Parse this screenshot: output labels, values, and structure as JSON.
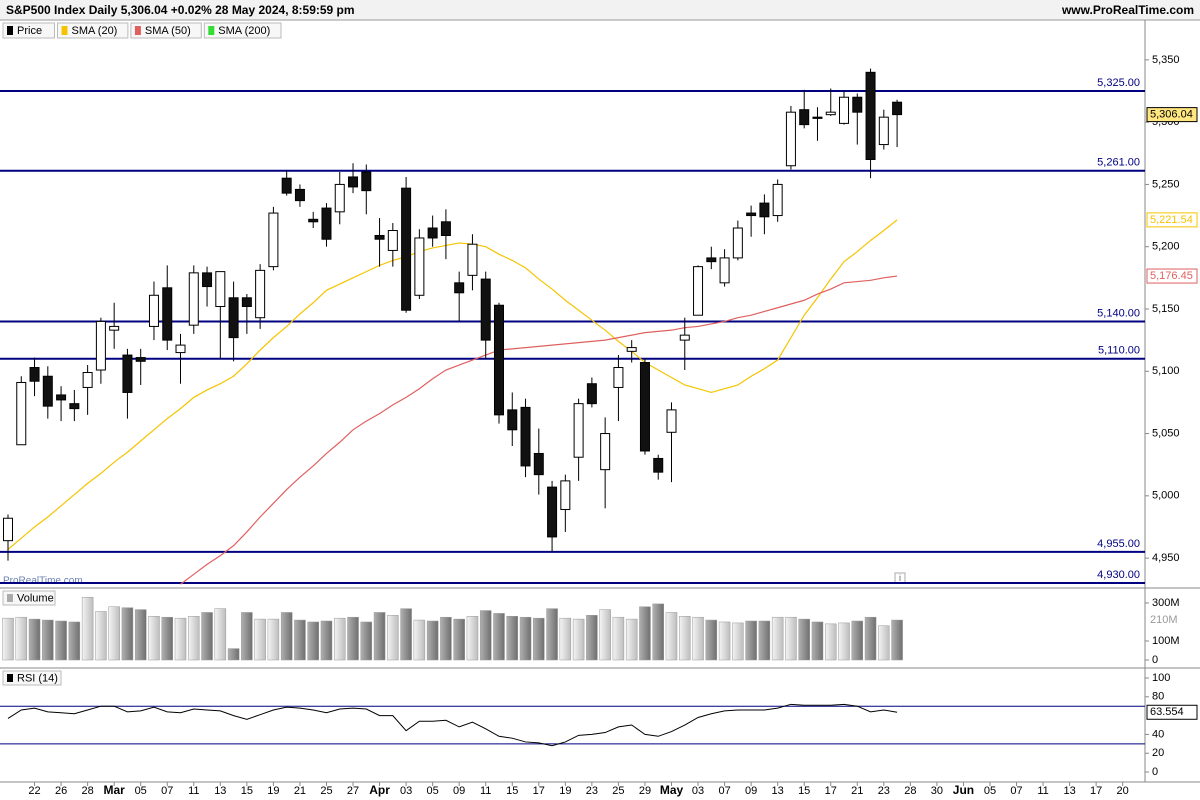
{
  "x_axis": {
    "categories": [
      null,
      null,
      "22",
      null,
      "26",
      null,
      "28",
      null,
      "Mar",
      null,
      "05",
      null,
      "07",
      null,
      "11",
      null,
      "13",
      null,
      "15",
      null,
      "19",
      null,
      "21",
      null,
      "25",
      null,
      "27",
      null,
      "Apr",
      null,
      "03",
      null,
      "05",
      null,
      "09",
      null,
      "11",
      null,
      "15",
      null,
      "17",
      null,
      "19",
      null,
      "23",
      null,
      "25",
      null,
      "29",
      null,
      "May",
      null,
      "03",
      null,
      "07",
      null,
      "09",
      null,
      "13",
      null,
      "15",
      null,
      "17",
      null,
      "21",
      null,
      "23",
      null,
      "28",
      null,
      "30",
      null,
      "Jun",
      null,
      "05",
      null,
      "07",
      null,
      "11",
      null,
      "13",
      null,
      "17",
      null,
      "20",
      null
    ]
  },
  "chart_data": [
    {
      "type": "candlestick",
      "title": "S&P500 Index Daily 5,306.04 +0.02% 28 May 2024, 8:59:59 pm",
      "source": "www.ProRealTime.com",
      "watermark": "ProRealTime.com",
      "price_name": "Price",
      "open": [
        4964,
        5041,
        5103,
        5096,
        5081,
        5074,
        5087,
        5101,
        5133,
        5113,
        5111,
        5136,
        5167,
        5115,
        5137,
        5179,
        5152,
        5159,
        5159,
        5143,
        5184,
        5255,
        5246,
        5222,
        5231,
        5228,
        5256,
        5260,
        5209,
        5197,
        5247,
        5161,
        5215,
        5220,
        5171,
        5177,
        5174,
        5153,
        5069,
        5071,
        5034,
        5007,
        4989,
        5031,
        5090,
        5021,
        5087,
        5116,
        5107,
        5030,
        5051,
        5125,
        5145,
        5191,
        5171,
        5191,
        5227,
        5235,
        5225,
        5265,
        5310,
        5304,
        5306,
        5299,
        5320,
        5340,
        5282,
        5316
      ],
      "high": [
        4985,
        5096,
        5111,
        5104,
        5088,
        5085,
        5105,
        5143,
        5155,
        5118,
        5118,
        5172,
        5185,
        5130,
        5185,
        5184,
        5180,
        5172,
        5162,
        5186,
        5232,
        5261,
        5250,
        5228,
        5235,
        5260,
        5267,
        5266,
        5223,
        5219,
        5256,
        5214,
        5225,
        5230,
        5180,
        5210,
        5180,
        5155,
        5083,
        5078,
        5054,
        5012,
        5017,
        5078,
        5095,
        5063,
        5113,
        5125,
        5110,
        5033,
        5075,
        5143,
        5185,
        5200,
        5198,
        5221,
        5233,
        5242,
        5254,
        5313,
        5326,
        5312,
        5327,
        5325,
        5323,
        5343,
        5310,
        5318
      ],
      "low": [
        4948,
        5041,
        5080,
        5062,
        5060,
        5060,
        5065,
        5090,
        5118,
        5062,
        5089,
        5125,
        5117,
        5090,
        5130,
        5152,
        5110,
        5108,
        5130,
        5134,
        5181,
        5241,
        5232,
        5215,
        5200,
        5218,
        5243,
        5226,
        5184,
        5184,
        5147,
        5158,
        5200,
        5190,
        5140,
        5165,
        5110,
        5058,
        5040,
        5015,
        5001,
        4955,
        4971,
        5012,
        5071,
        4990,
        5060,
        5107,
        5033,
        5013,
        5011,
        5101,
        5145,
        5182,
        5168,
        5189,
        5208,
        5210,
        5220,
        5262,
        5295,
        5285,
        5305,
        5298,
        5282,
        5255,
        5278,
        5280
      ],
      "close": [
        4982,
        5091,
        5092,
        5072,
        5077,
        5070,
        5099,
        5140,
        5136,
        5083,
        5108,
        5161,
        5125,
        5121,
        5179,
        5168,
        5180,
        5127,
        5152,
        5181,
        5227,
        5243,
        5237,
        5220,
        5206,
        5250,
        5248,
        5245,
        5206,
        5213,
        5149,
        5207,
        5207,
        5209,
        5163,
        5202,
        5125,
        5065,
        5053,
        5024,
        5017,
        4967,
        5012,
        5074,
        5074,
        5050,
        5103,
        5119,
        5036,
        5019,
        5069,
        5129,
        5184,
        5188,
        5191,
        5215,
        5225,
        5224,
        5250,
        5308,
        5298,
        5303,
        5308,
        5320,
        5308,
        5270,
        5304,
        5306.04
      ],
      "close_label": "5,306.04",
      "series": [
        {
          "name": "SMA (20)",
          "color": "#f5c400",
          "last_label": "5,221.54",
          "values": [
            4957,
            4966,
            4975,
            4983,
            4992,
            5001,
            5010,
            5018,
            5027,
            5035,
            5044,
            5053,
            5062,
            5070,
            5079,
            5085,
            5090,
            5096,
            5106,
            5117,
            5127,
            5136,
            5146,
            5155,
            5165,
            5170,
            5175,
            5180,
            5185,
            5189,
            5192,
            5196,
            5199,
            5201,
            5203,
            5202,
            5200,
            5194,
            5189,
            5183,
            5174,
            5166,
            5157,
            5149,
            5141,
            5133,
            5124,
            5116,
            5107,
            5101,
            5095,
            5089,
            5086,
            5083,
            5086,
            5089,
            5096,
            5102,
            5109,
            5127,
            5145,
            5159,
            5174,
            5188,
            5196,
            5205,
            5213,
            5221.54
          ]
        },
        {
          "name": "SMA (50)",
          "color": "#e06060",
          "last_label": "5,176.45",
          "values": [
            null,
            null,
            null,
            null,
            null,
            null,
            null,
            null,
            null,
            null,
            null,
            null,
            null,
            4929,
            4937,
            4945,
            4952,
            4960,
            4971,
            4983,
            4994,
            5005,
            5015,
            5024,
            5034,
            5043,
            5053,
            5060,
            5066,
            5073,
            5079,
            5086,
            5094,
            5101,
            5105,
            5109,
            5113,
            5117,
            5118,
            5119,
            5120,
            5121,
            5122,
            5123,
            5124,
            5125,
            5127,
            5129,
            5131,
            5132,
            5133,
            5135,
            5136,
            5138,
            5140,
            5143,
            5145,
            5148,
            5151,
            5154,
            5157,
            5162,
            5166,
            5171,
            5172,
            5173,
            5175,
            5176.45
          ]
        },
        {
          "name": "SMA (200)",
          "color": "#33dd33",
          "values": [
            null,
            null,
            null,
            null,
            null,
            null,
            null,
            null,
            null,
            null,
            null,
            null,
            null,
            null,
            null,
            null,
            null,
            null,
            null,
            null,
            null,
            null,
            null,
            null,
            null,
            null,
            null,
            null,
            null,
            null,
            null,
            null,
            null,
            null,
            null,
            null,
            null,
            null,
            null,
            null,
            null,
            null,
            null,
            null,
            null,
            null,
            null,
            null,
            null,
            null,
            null,
            null,
            null,
            null,
            null,
            null,
            null,
            null,
            null,
            null,
            null,
            null,
            null,
            null,
            null,
            null,
            null,
            null
          ]
        }
      ],
      "levels": [
        {
          "value": 5325,
          "label": "5,325.00"
        },
        {
          "value": 5261,
          "label": "5,261.00"
        },
        {
          "value": 5140,
          "label": "5,140.00"
        },
        {
          "value": 5110,
          "label": "5,110.00"
        },
        {
          "value": 4955,
          "label": "4,955.00"
        },
        {
          "value": 4930,
          "label": "4,930.00"
        }
      ],
      "level_color": "#000080",
      "ylim": [
        4926,
        5382
      ],
      "yticks": [
        {
          "value": 4950,
          "label": "4,950"
        },
        {
          "value": 5000,
          "label": "5,000"
        },
        {
          "value": 5050,
          "label": "5,050"
        },
        {
          "value": 5100,
          "label": "5,100"
        },
        {
          "value": 5150,
          "label": "5,150"
        },
        {
          "value": 5200,
          "label": "5,200"
        },
        {
          "value": 5250,
          "label": "5,250"
        },
        {
          "value": 5300,
          "label": "5,300"
        },
        {
          "value": 5350,
          "label": "5,350"
        }
      ]
    },
    {
      "type": "bar",
      "title": "Volume",
      "values": [
        220,
        225,
        215,
        210,
        205,
        200,
        330,
        255,
        280,
        275,
        265,
        230,
        225,
        220,
        230,
        250,
        270,
        60,
        250,
        215,
        215,
        250,
        210,
        200,
        205,
        220,
        225,
        200,
        250,
        235,
        270,
        210,
        205,
        225,
        215,
        230,
        260,
        245,
        230,
        225,
        220,
        270,
        220,
        215,
        235,
        265,
        225,
        215,
        280,
        295,
        250,
        230,
        225,
        210,
        200,
        195,
        205,
        205,
        225,
        225,
        215,
        200,
        190,
        195,
        205,
        225,
        180,
        210
      ],
      "last_label": "210M",
      "ylim": [
        -42,
        368
      ],
      "yticks": [
        0,
        {
          "value": 100,
          "label": "100M"
        },
        {
          "value": 300,
          "label": "300M"
        }
      ]
    },
    {
      "type": "line",
      "title": "RSI (14)",
      "color": "#000000",
      "values": [
        57,
        66,
        68,
        64,
        63,
        62,
        66,
        70,
        70,
        64,
        65,
        69,
        64,
        63,
        67,
        66,
        65,
        60,
        56,
        61,
        66,
        69,
        68,
        66,
        63,
        67,
        68,
        67,
        60,
        60,
        44,
        54,
        54,
        55,
        48,
        53,
        46,
        38,
        36,
        32,
        31,
        28,
        32,
        39,
        40,
        42,
        48,
        50,
        40,
        38,
        43,
        50,
        58,
        62,
        65,
        66,
        66,
        66,
        68,
        72,
        71,
        71,
        71,
        72,
        70,
        64,
        66,
        63.554
      ],
      "levels": [
        30,
        70
      ],
      "level_color": "#000080",
      "ylim": [
        -10.6,
        108.5
      ],
      "yticks": [
        0,
        20,
        40,
        80,
        100
      ]
    }
  ]
}
